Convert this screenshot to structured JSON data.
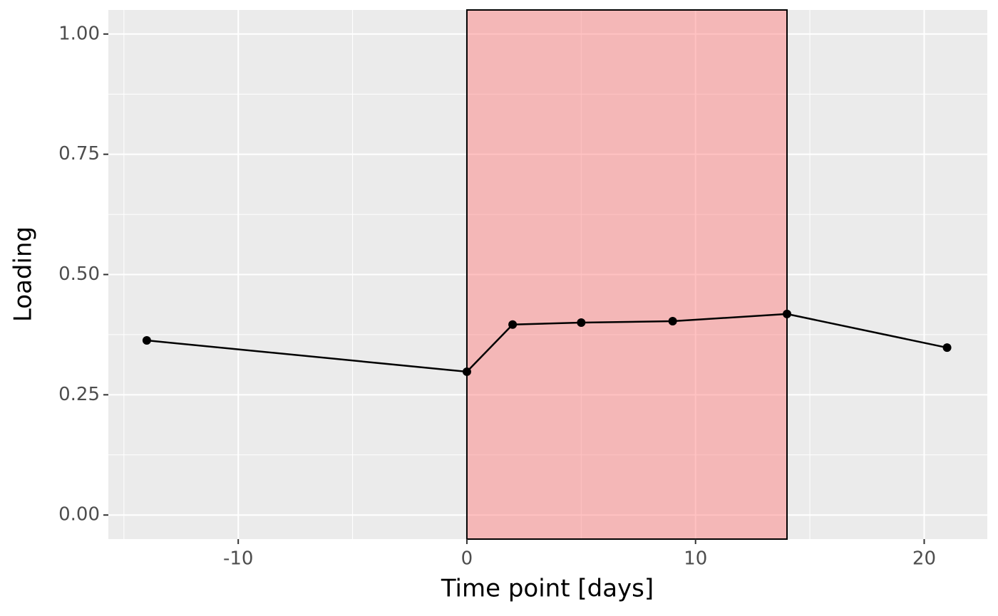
{
  "chart_data": {
    "type": "line",
    "x_label": "Time point [days]",
    "y_label": "Loading",
    "x": [
      -14,
      0,
      2,
      5,
      9,
      14,
      21
    ],
    "series": [
      {
        "color": "#000000",
        "values": [
          0.363,
          0.298,
          0.396,
          0.4,
          0.403,
          0.418,
          0.348
        ]
      }
    ],
    "xlim": [
      -15.68,
      22.76
    ],
    "ylim": [
      -0.05,
      1.05
    ],
    "xticks": [
      -10,
      0,
      10,
      20
    ],
    "yticks": [
      {
        "value": 0,
        "label": "0.00"
      },
      {
        "value": 0.25,
        "label": "0.25"
      },
      {
        "value": 0.5,
        "label": "0.50"
      },
      {
        "value": 0.75,
        "label": "0.75"
      },
      {
        "value": 1,
        "label": "1.00"
      }
    ],
    "grid": true,
    "minor_grid": true,
    "shade": {
      "xlim": [
        0,
        14
      ],
      "color": "#ff7878",
      "opacity": 0.45
    }
  }
}
